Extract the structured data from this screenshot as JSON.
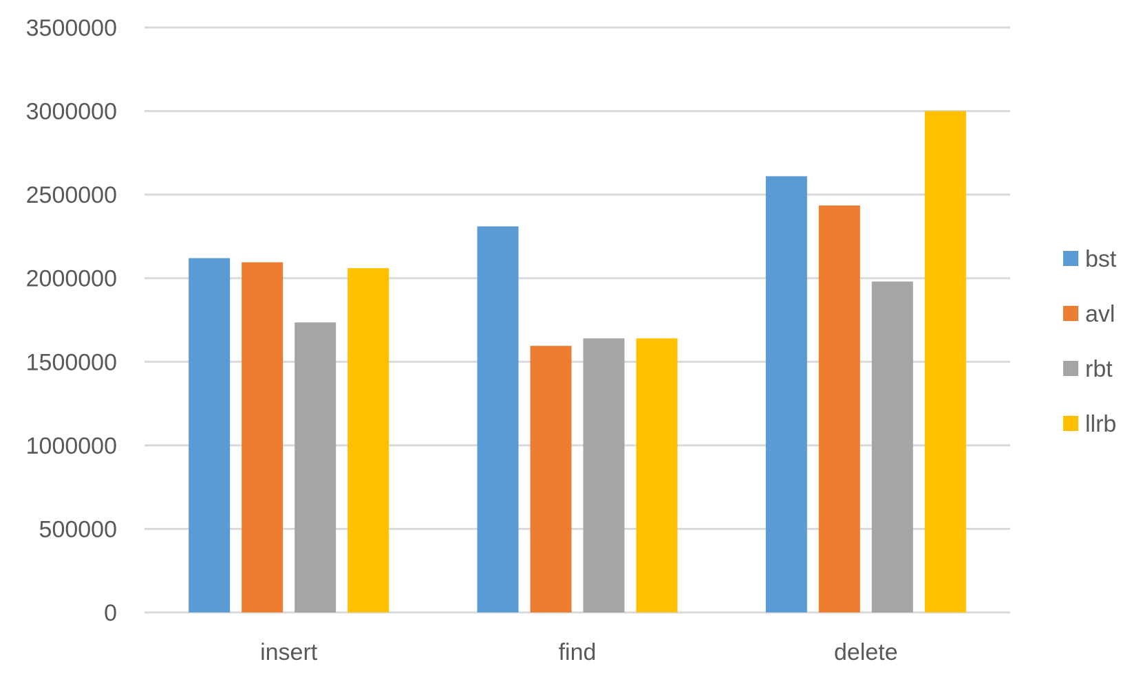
{
  "chart_data": {
    "type": "bar",
    "title": "",
    "xlabel": "",
    "ylabel": "",
    "categories": [
      "insert",
      "find",
      "delete"
    ],
    "series": [
      {
        "name": "bst",
        "color": "#5b9bd5",
        "values": [
          2120000,
          2310000,
          2610000
        ]
      },
      {
        "name": "avl",
        "color": "#ed7d31",
        "values": [
          2095000,
          1595000,
          2435000
        ]
      },
      {
        "name": "rbt",
        "color": "#a5a5a5",
        "values": [
          1735000,
          1640000,
          1980000
        ]
      },
      {
        "name": "llrb",
        "color": "#ffc000",
        "values": [
          2060000,
          1640000,
          3000000
        ]
      }
    ],
    "ylim": [
      0,
      3500000
    ],
    "yticks": [
      "0",
      "500000",
      "1000000",
      "1500000",
      "2000000",
      "2500000",
      "3000000",
      "3500000"
    ],
    "grid": "horizontal",
    "legend": "right"
  }
}
